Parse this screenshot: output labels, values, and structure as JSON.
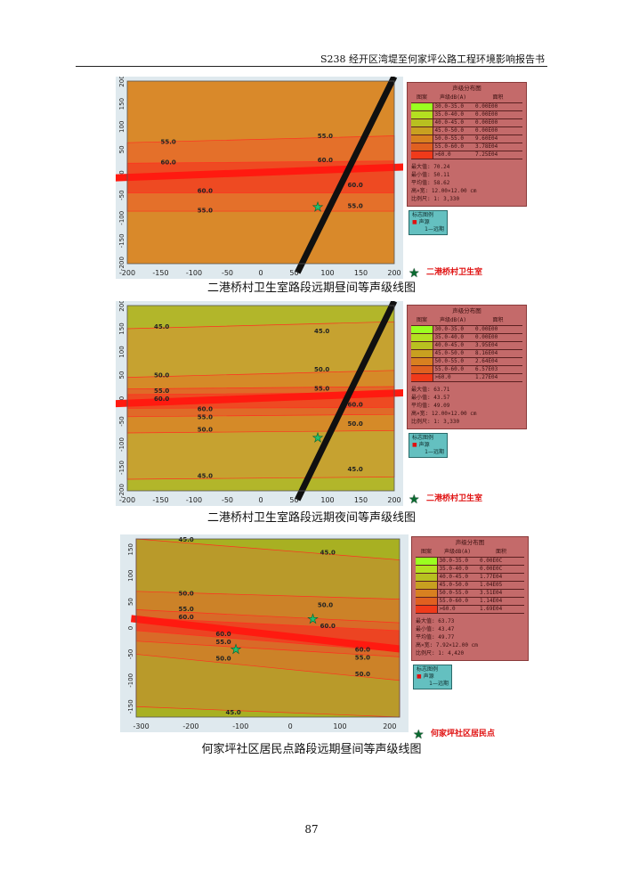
{
  "header": {
    "title": "S238 经开区湾堤至何家坪公路工程环境影响报告书"
  },
  "page_number": "87",
  "legend_labels": {
    "title": "声级分布图",
    "col_pattern": "图案",
    "col_level": "声级dB(A)",
    "col_area": "面积",
    "max": "最大值:",
    "min": "最小值:",
    "avg": "平均值:",
    "size": "高×宽:",
    "scale": "比例尺:"
  },
  "sign_legend": {
    "title": "标志图例",
    "source": "声源",
    "period": "1—远期"
  },
  "figures": [
    {
      "caption": "二港桥村卫生室路段远期昼间等声级线图",
      "site": "二港桥村卫生室",
      "xlim": [
        -200,
        200
      ],
      "ylim": [
        -200,
        200
      ],
      "xticks": [
        "-200",
        "-150",
        "-100",
        "-50",
        "0",
        "50",
        "100",
        "150",
        "200"
      ],
      "yticks": [
        "200",
        "150",
        "100",
        "50",
        "0",
        "-50",
        "-100",
        "-150",
        "-200"
      ],
      "base_color": "#d9892a",
      "bands": [
        {
          "lo": [
            -85,
            -85
          ],
          "hi": [
            65,
            80
          ],
          "color": "#e4702a"
        },
        {
          "lo": [
            -45,
            -45
          ],
          "hi": [
            20,
            25
          ],
          "color": "#ee4a22"
        }
      ],
      "contour_labels": [
        {
          "v": "55.0",
          "x": -150,
          "y": 62
        },
        {
          "v": "55.0",
          "x": 85,
          "y": 75
        },
        {
          "v": "60.0",
          "x": -150,
          "y": 18
        },
        {
          "v": "60.0",
          "x": 85,
          "y": 22
        },
        {
          "v": "60.0",
          "x": -95,
          "y": -45
        },
        {
          "v": "60.0",
          "x": 130,
          "y": -32
        },
        {
          "v": "55.0",
          "x": -95,
          "y": -88
        },
        {
          "v": "55.0",
          "x": 130,
          "y": -78
        }
      ],
      "road": [
        [
          -220,
          -12
        ],
        [
          220,
          12
        ]
      ],
      "cross_road": [
        [
          55,
          -200
        ],
        [
          200,
          200
        ]
      ],
      "stars": [
        [
          85,
          -75
        ]
      ],
      "legend": {
        "rows": [
          [
            "30.0-35.0",
            "0.00E00",
            "#9aff20"
          ],
          [
            "35.0-40.0",
            "0.00E00",
            "#b4e020"
          ],
          [
            "40.0-45.0",
            "0.00E00",
            "#b8c020"
          ],
          [
            "45.0-50.0",
            "0.00E00",
            "#c8a020"
          ],
          [
            "50.0-55.0",
            "9.60E04",
            "#d88020"
          ],
          [
            "55.0-60.0",
            "3.78E04",
            "#e06020"
          ],
          [
            ">60.0",
            "7.25E04",
            "#f03a1a"
          ]
        ],
        "max": "70.24",
        "min": "50.11",
        "avg": "58.62",
        "size": "12.00×12.00 cm",
        "scale": "1: 3,330"
      }
    },
    {
      "caption": "二港桥村卫生室路段远期夜间等声级线图",
      "site": "二港桥村卫生室",
      "xlim": [
        -200,
        200
      ],
      "ylim": [
        -200,
        200
      ],
      "xticks": [
        "-200",
        "-150",
        "-100",
        "-50",
        "0",
        "50",
        "100",
        "150",
        "200"
      ],
      "yticks": [
        "200",
        "150",
        "100",
        "50",
        "0",
        "-50",
        "-100",
        "-150",
        "-200"
      ],
      "base_color": "#b2b62a",
      "bands": [
        {
          "lo": [
            -175,
            -170
          ],
          "hi": [
            150,
            165
          ],
          "color": "#c6a230"
        },
        {
          "lo": [
            -75,
            -70
          ],
          "hi": [
            45,
            60
          ],
          "color": "#d58a28"
        },
        {
          "lo": [
            -40,
            -35
          ],
          "hi": [
            20,
            25
          ],
          "color": "#e06a28"
        },
        {
          "lo": [
            -22,
            -20
          ],
          "hi": [
            8,
            12
          ],
          "color": "#ee4a22"
        }
      ],
      "contour_labels": [
        {
          "v": "45.0",
          "x": -160,
          "y": 150
        },
        {
          "v": "45.0",
          "x": 80,
          "y": 140
        },
        {
          "v": "50.0",
          "x": -160,
          "y": 45
        },
        {
          "v": "50.0",
          "x": 80,
          "y": 58
        },
        {
          "v": "55.0",
          "x": -160,
          "y": 12
        },
        {
          "v": "60.0",
          "x": -160,
          "y": 2
        },
        {
          "v": "55.0",
          "x": 80,
          "y": 16
        },
        {
          "v": "60.0",
          "x": -95,
          "y": -28
        },
        {
          "v": "55.0",
          "x": -95,
          "y": -38
        },
        {
          "v": "60.0",
          "x": 130,
          "y": -18
        },
        {
          "v": "50.0",
          "x": -95,
          "y": -72
        },
        {
          "v": "50.0",
          "x": 130,
          "y": -60
        },
        {
          "v": "45.0",
          "x": -95,
          "y": -172
        },
        {
          "v": "45.0",
          "x": 130,
          "y": -158
        }
      ],
      "road": [
        [
          -220,
          -12
        ],
        [
          220,
          12
        ]
      ],
      "cross_road": [
        [
          55,
          -200
        ],
        [
          200,
          200
        ]
      ],
      "stars": [
        [
          85,
          -85
        ]
      ],
      "legend": {
        "rows": [
          [
            "30.0-35.0",
            "0.00E00",
            "#9aff20"
          ],
          [
            "35.0-40.0",
            "0.00E00",
            "#b4e020"
          ],
          [
            "40.0-45.0",
            "3.95E04",
            "#b8c020"
          ],
          [
            "45.0-50.0",
            "8.16E04",
            "#c8a020"
          ],
          [
            "50.0-55.0",
            "2.64E04",
            "#d88020"
          ],
          [
            "55.0-60.0",
            "6.57E03",
            "#e06020"
          ],
          [
            ">60.0",
            "1.27E04",
            "#f03a1a"
          ]
        ],
        "max": "63.71",
        "min": "43.57",
        "avg": "49.09",
        "size": "12.00×12.00 cm",
        "scale": "1: 3,330"
      }
    },
    {
      "caption": "何家坪社区居民点路段远期昼间等声级线图",
      "site": "何家坪社区居民点",
      "xlim": [
        -310,
        220
      ],
      "ylim": [
        -170,
        170
      ],
      "xticks": [
        "-300",
        "-200",
        "-100",
        "0",
        "100",
        "200"
      ],
      "xtick_vals": [
        -300,
        -200,
        -100,
        0,
        100,
        200
      ],
      "yticks": [
        "150",
        "100",
        "50",
        "0",
        "-50",
        "-100",
        "-150"
      ],
      "ytick_vals": [
        150,
        100,
        50,
        0,
        -50,
        -100,
        -150
      ],
      "base_color": "#a8b022",
      "bands": [
        {
          "lo": [
            -150,
            -170
          ],
          "hi": [
            170,
            130
          ],
          "color": "#b99a2a"
        },
        {
          "lo": [
            -50,
            -100
          ],
          "hi": [
            70,
            55
          ],
          "color": "#cc8228"
        },
        {
          "lo": [
            -25,
            -55
          ],
          "hi": [
            35,
            10
          ],
          "color": "#d96a28"
        },
        {
          "lo": [
            -5,
            -45
          ],
          "hi": [
            20,
            -5
          ],
          "color": "#ec4422"
        }
      ],
      "contour_labels": [
        {
          "v": "45.0",
          "x": -225,
          "y": 165
        },
        {
          "v": "45.0",
          "x": 60,
          "y": 140
        },
        {
          "v": "50.0",
          "x": -225,
          "y": 62
        },
        {
          "v": "50.0",
          "x": 55,
          "y": 40
        },
        {
          "v": "55.0",
          "x": -225,
          "y": 32
        },
        {
          "v": "60.0",
          "x": -225,
          "y": 24
        },
        {
          "v": "60.0",
          "x": 60,
          "y": 0
        },
        {
          "v": "60.0",
          "x": -150,
          "y": -15
        },
        {
          "v": "55.0",
          "x": -150,
          "y": -25
        },
        {
          "v": "50.0",
          "x": -150,
          "y": -62
        },
        {
          "v": "60.0",
          "x": 130,
          "y": -45
        },
        {
          "v": "55.0",
          "x": 130,
          "y": -55
        },
        {
          "v": "50.0",
          "x": 130,
          "y": -92
        },
        {
          "v": "45.0",
          "x": -130,
          "y": -165
        }
      ],
      "road": [
        [
          -320,
          18
        ],
        [
          220,
          -40
        ]
      ],
      "stars": [
        [
          -110,
          -40
        ],
        [
          45,
          18
        ]
      ],
      "legend": {
        "rows": [
          [
            "30.0-35.0",
            "0.00E0C",
            "#9aff20"
          ],
          [
            "35.0-40.0",
            "0.00E0C",
            "#b4e020"
          ],
          [
            "40.0-45.0",
            "1.77E04",
            "#b8c020"
          ],
          [
            "45.0-50.0",
            "1.04E05",
            "#c8a020"
          ],
          [
            "50.0-55.0",
            "3.51E04",
            "#d88020"
          ],
          [
            "55.0-60.0",
            "1.14E04",
            "#e06020"
          ],
          [
            ">60.0",
            "1.69E04",
            "#f03a1a"
          ]
        ],
        "max": "63.73",
        "min": "43.47",
        "avg": "49.77",
        "size": "7.92×12.00 cm",
        "scale": "1: 4,420"
      }
    }
  ]
}
